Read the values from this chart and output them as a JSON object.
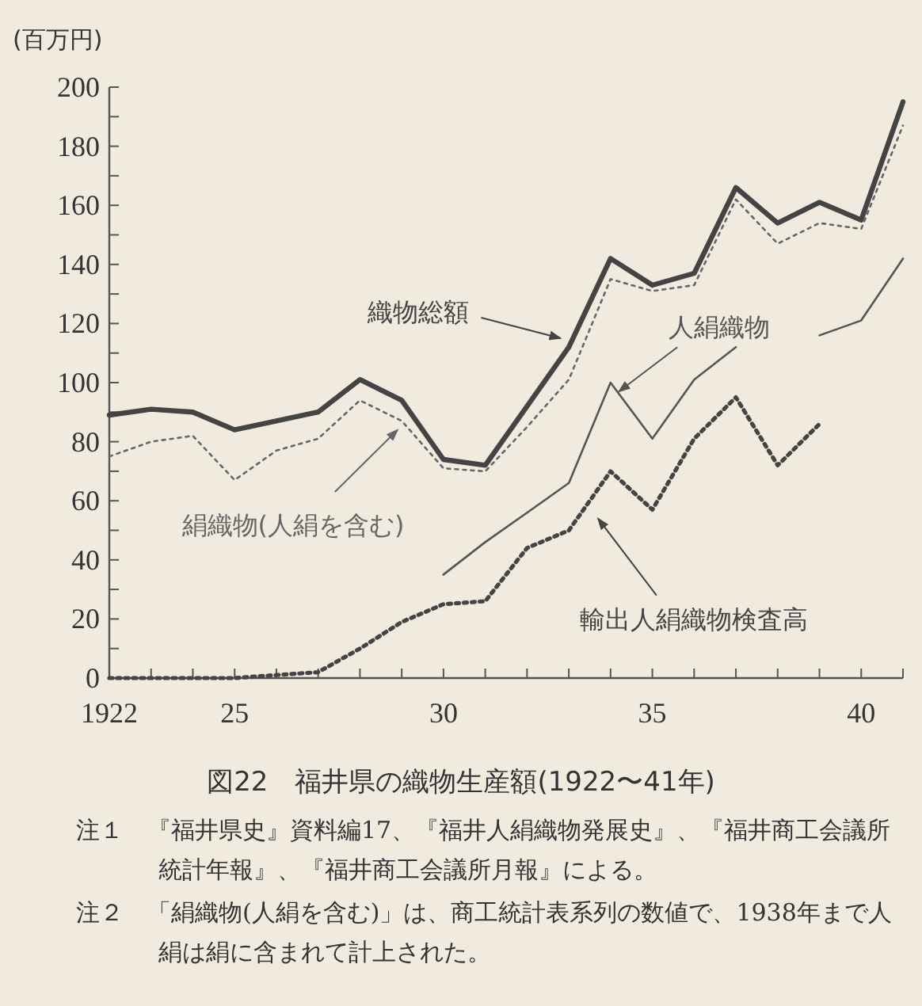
{
  "chart_data": {
    "type": "line",
    "title": "図22　福井県の織物生産額(1922〜41年)",
    "ylabel": "(百万円)",
    "x": [
      1922,
      1923,
      1924,
      1925,
      1926,
      1927,
      1928,
      1929,
      1930,
      1931,
      1932,
      1933,
      1934,
      1935,
      1936,
      1937,
      1938,
      1939,
      1940,
      1941
    ],
    "xlim": [
      1922,
      1941
    ],
    "xticks": [
      {
        "value": 1922,
        "label": "1922"
      },
      {
        "value": 1923,
        "label": null
      },
      {
        "value": 1924,
        "label": null
      },
      {
        "value": 1925,
        "label": "25"
      },
      {
        "value": 1926,
        "label": null
      },
      {
        "value": 1927,
        "label": null
      },
      {
        "value": 1928,
        "label": null
      },
      {
        "value": 1929,
        "label": null
      },
      {
        "value": 1930,
        "label": "30"
      },
      {
        "value": 1931,
        "label": null
      },
      {
        "value": 1932,
        "label": null
      },
      {
        "value": 1933,
        "label": null
      },
      {
        "value": 1934,
        "label": null
      },
      {
        "value": 1935,
        "label": "35"
      },
      {
        "value": 1936,
        "label": null
      },
      {
        "value": 1937,
        "label": null
      },
      {
        "value": 1938,
        "label": null
      },
      {
        "value": 1939,
        "label": null
      },
      {
        "value": 1940,
        "label": "40"
      },
      {
        "value": 1941,
        "label": null
      }
    ],
    "ylim": [
      0,
      200
    ],
    "yticks": [
      0,
      {
        "value": 10,
        "label": null
      },
      20,
      {
        "value": 30,
        "label": null
      },
      40,
      {
        "value": 50,
        "label": null
      },
      60,
      {
        "value": 70,
        "label": null
      },
      80,
      {
        "value": 90,
        "label": null
      },
      100,
      {
        "value": 110,
        "label": null
      },
      120,
      {
        "value": 130,
        "label": null
      },
      140,
      {
        "value": 150,
        "label": null
      },
      160,
      {
        "value": 170,
        "label": null
      },
      180,
      {
        "value": 190,
        "label": null
      },
      200
    ],
    "series": [
      {
        "name": "織物総額",
        "color": "#444444",
        "line_style": "solid",
        "values": [
          89,
          91,
          90,
          84,
          87,
          90,
          101,
          94,
          74,
          72,
          92,
          112,
          142,
          133,
          137,
          166,
          154,
          161,
          155,
          195
        ]
      },
      {
        "name": "絹織物(人絹を含む)",
        "color": "#666666",
        "line_style": "dotted",
        "values": [
          75,
          80,
          82,
          67,
          77,
          81,
          94,
          87,
          71,
          70,
          85,
          101,
          135,
          131,
          133,
          162,
          147,
          154,
          152,
          187
        ]
      },
      {
        "name": "人絹織物",
        "color": "#555555",
        "line_style": "solid",
        "values": [
          null,
          null,
          null,
          null,
          null,
          null,
          null,
          null,
          35,
          46,
          56,
          66,
          100,
          81,
          101,
          112,
          null,
          116,
          121,
          142
        ]
      },
      {
        "name": "輸出人絹織物検査高",
        "color": "#444444",
        "line_style": "dotted",
        "values": [
          0,
          0,
          0,
          0,
          1,
          2,
          10,
          19,
          25,
          26,
          44,
          50,
          70,
          57,
          81,
          95,
          72,
          86,
          null,
          null
        ]
      }
    ],
    "annotations": [
      "注１　『福井県史』資料編17、『福井人絹織物発展史』、『福井商工会議所統計年報』、『福井商工会議所月報』による。",
      "注２　「絹織物(人絹を含む)」は、商工統計表系列の数値で、1938年まで人絹は絹に含まれて計上された。"
    ]
  }
}
